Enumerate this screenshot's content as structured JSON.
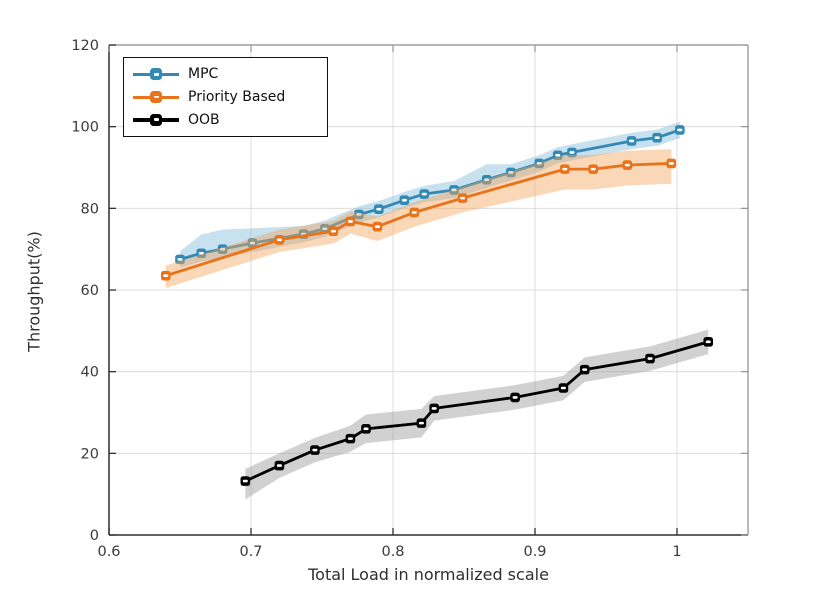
{
  "chart_data": {
    "type": "line",
    "title": "",
    "xlabel": "Total Load in normalized scale",
    "ylabel": "Throughput(%)",
    "xlim": [
      0.6,
      1.05
    ],
    "ylim": [
      0,
      120
    ],
    "xticks": [
      0.6,
      0.7,
      0.8,
      0.9,
      1.0
    ],
    "xtick_labels": [
      "0.6",
      "0.7",
      "0.8",
      "0.9",
      "1"
    ],
    "yticks": [
      0,
      20,
      40,
      60,
      80,
      100,
      120
    ],
    "ytick_labels": [
      "0",
      "20",
      "40",
      "60",
      "80",
      "100",
      "120"
    ],
    "grid": true,
    "grid_color": "#dcdcdc",
    "legend_position": "top-left",
    "series": [
      {
        "name": "MPC",
        "color": "#3389b5",
        "band_color": "#8fc4de",
        "band_opacity": 0.5,
        "x": [
          0.65,
          0.665,
          0.68,
          0.701,
          0.737,
          0.752,
          0.776,
          0.79,
          0.808,
          0.822,
          0.843,
          0.866,
          0.883,
          0.903,
          0.916,
          0.926,
          0.968,
          0.986,
          1.002
        ],
        "y": [
          67.5,
          69.0,
          70.0,
          71.5,
          73.7,
          75.0,
          78.5,
          79.8,
          82.0,
          83.5,
          84.5,
          87.0,
          88.8,
          91.0,
          93.0,
          93.7,
          96.5,
          97.3,
          99.2
        ],
        "band_upper": [
          2.0,
          4.6,
          4.8,
          3.6,
          2.0,
          2.0,
          2.0,
          2.0,
          2.0,
          2.0,
          2.2,
          3.8,
          2.0,
          2.0,
          2.0,
          2.0,
          2.0,
          2.0,
          2.0
        ],
        "band_lower": [
          2.0,
          2.0,
          2.2,
          2.2,
          2.0,
          2.0,
          2.0,
          2.0,
          2.0,
          2.0,
          2.0,
          2.0,
          2.0,
          2.0,
          2.0,
          2.0,
          2.0,
          2.0,
          2.0
        ]
      },
      {
        "name": "Priority Based",
        "color": "#e8731a",
        "band_color": "#f2a660",
        "band_opacity": 0.45,
        "x": [
          0.64,
          0.72,
          0.758,
          0.77,
          0.789,
          0.815,
          0.849,
          0.921,
          0.941,
          0.965,
          0.996
        ],
        "y": [
          63.5,
          72.3,
          74.4,
          76.8,
          75.5,
          79.0,
          82.5,
          89.6,
          89.6,
          90.6,
          91.0
        ],
        "band_upper": [
          2.5,
          2.5,
          2.5,
          2.5,
          2.5,
          2.5,
          2.8,
          3.5,
          3.5,
          3.5,
          3.5
        ],
        "band_lower": [
          3.0,
          3.0,
          3.0,
          3.0,
          3.5,
          3.5,
          3.5,
          5.0,
          5.0,
          5.0,
          5.0
        ]
      },
      {
        "name": "OOB",
        "color": "#000000",
        "band_color": "#999999",
        "band_opacity": 0.45,
        "x": [
          0.696,
          0.72,
          0.745,
          0.77,
          0.781,
          0.82,
          0.829,
          0.886,
          0.92,
          0.935,
          0.981,
          1.022
        ],
        "y": [
          13.2,
          17.0,
          20.8,
          23.6,
          26.0,
          27.4,
          31.0,
          33.7,
          36.0,
          40.5,
          43.2,
          47.3
        ],
        "band_upper": [
          3.0,
          3.0,
          3.0,
          3.2,
          3.5,
          3.5,
          3.0,
          3.0,
          3.0,
          3.0,
          3.0,
          3.0
        ],
        "band_lower": [
          4.5,
          3.0,
          3.0,
          3.2,
          3.5,
          3.5,
          3.0,
          3.0,
          3.0,
          3.0,
          3.0,
          3.0
        ]
      }
    ],
    "spine_color_dark": "#2f2f2f",
    "spine_color_light": "#8c8c8c",
    "tick_color": "#2f2f2f"
  }
}
